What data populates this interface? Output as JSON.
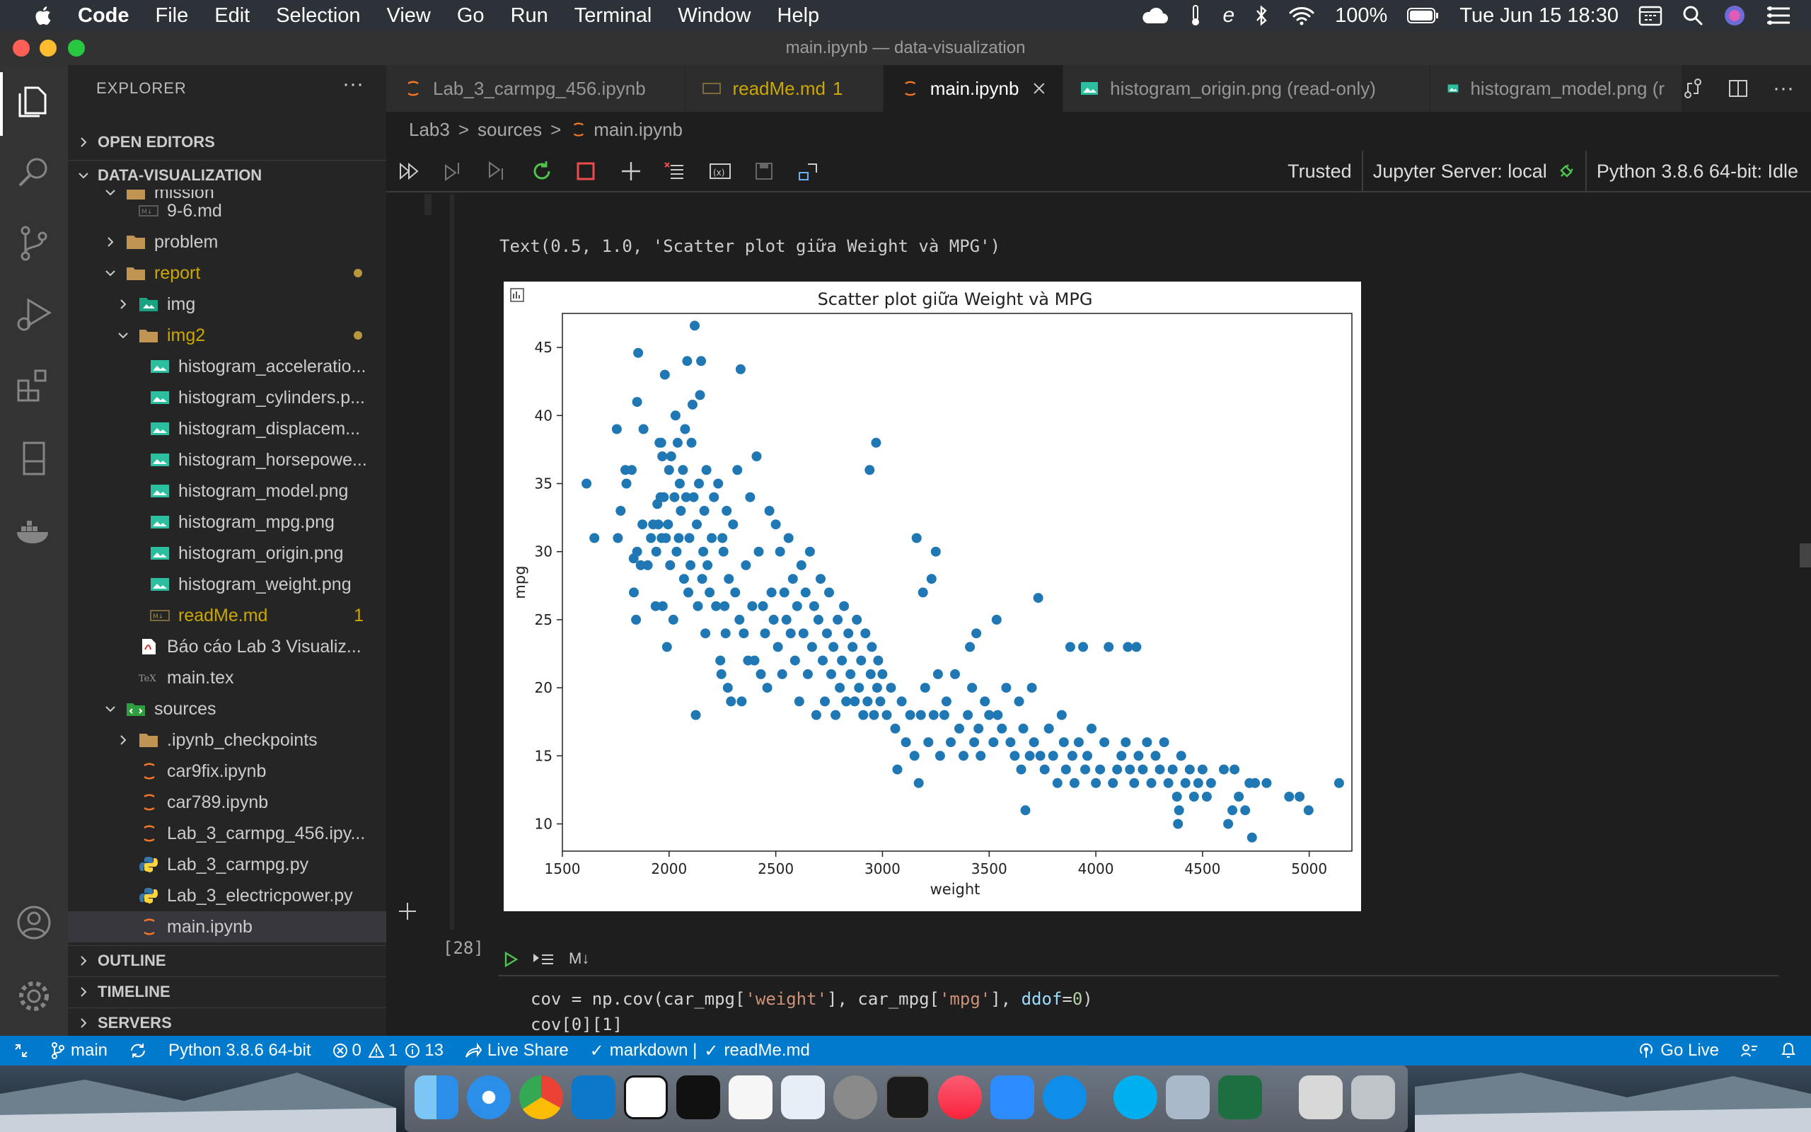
{
  "menubar": {
    "app_name": "Code",
    "items": [
      "File",
      "Edit",
      "Selection",
      "View",
      "Go",
      "Run",
      "Terminal",
      "Window",
      "Help"
    ],
    "battery": "100%",
    "datetime": "Tue Jun 15  18:30"
  },
  "window": {
    "title": "main.ipynb — data-visualization"
  },
  "sidebar": {
    "header": "EXPLORER",
    "open_editors": "OPEN EDITORS",
    "project": "DATA-VISUALIZATION",
    "tree": [
      {
        "label": "mission",
        "kind": "folder-open"
      },
      {
        "label": "9-6.md",
        "kind": "md"
      },
      {
        "label": "problem",
        "kind": "folder"
      },
      {
        "label": "report",
        "kind": "folder-open"
      },
      {
        "label": "img",
        "kind": "folder-img"
      },
      {
        "label": "img2",
        "kind": "folder-open"
      },
      {
        "label": "histogram_acceleratio...",
        "kind": "png"
      },
      {
        "label": "histogram_cylinders.p...",
        "kind": "png"
      },
      {
        "label": "histogram_displacem...",
        "kind": "png"
      },
      {
        "label": "histogram_horsepowe...",
        "kind": "png"
      },
      {
        "label": "histogram_model.png",
        "kind": "png"
      },
      {
        "label": "histogram_mpg.png",
        "kind": "png"
      },
      {
        "label": "histogram_origin.png",
        "kind": "png"
      },
      {
        "label": "histogram_weight.png",
        "kind": "png"
      },
      {
        "label": "readMe.md",
        "kind": "md"
      },
      {
        "label": "Báo cáo Lab 3 Visualiz...",
        "kind": "pdf"
      },
      {
        "label": "main.tex",
        "kind": "tex"
      },
      {
        "label": "sources",
        "kind": "folder-open"
      },
      {
        "label": ".ipynb_checkpoints",
        "kind": "folder"
      },
      {
        "label": "car9fix.ipynb",
        "kind": "ipynb"
      },
      {
        "label": "car789.ipynb",
        "kind": "ipynb"
      },
      {
        "label": "Lab_3_carmpg_456.ipy...",
        "kind": "ipynb"
      },
      {
        "label": "Lab_3_carmpg.py",
        "kind": "py"
      },
      {
        "label": "Lab_3_electricpower.py",
        "kind": "py"
      },
      {
        "label": "main.ipynb",
        "kind": "ipynb"
      }
    ],
    "readme_badge": "1",
    "outline": "OUTLINE",
    "timeline": "TIMELINE",
    "servers": "SERVERS"
  },
  "tabs": [
    {
      "label": "Lab_3_carmpg_456.ipynb"
    },
    {
      "label": "readMe.md",
      "badge": "1"
    },
    {
      "label": "main.ipynb"
    },
    {
      "label": "histogram_origin.png (read-only)"
    },
    {
      "label": "histogram_model.png (r"
    }
  ],
  "breadcrumb": [
    "Lab3",
    "sources",
    "main.ipynb"
  ],
  "nb_toolbar": {
    "trusted": "Trusted",
    "server": "Jupyter Server: local",
    "kernel": "Python 3.8.6 64-bit: Idle"
  },
  "output_text": "Text(0.5, 1.0, 'Scatter plot giữa Weight và MPG')",
  "exec_count": "[28]",
  "cell_md_label": "M↓",
  "code_lines": {
    "l1_a": "cov = np.cov(car_mpg[",
    "l1_s1": "'weight'",
    "l1_b": "], car_mpg[",
    "l1_s2": "'mpg'",
    "l1_c": "], ",
    "l1_k": "ddof",
    "l1_d": "=",
    "l1_n": "0",
    "l1_e": ")",
    "l2": "cov[0][1]"
  },
  "statusbar": {
    "branch": "main",
    "interpreter": "Python 3.8.6 64-bit",
    "errors": "0",
    "warnings": "1",
    "infos": "13",
    "live_share": "Live Share",
    "mode": "markdown |",
    "file": "readMe.md",
    "go_live": "Go Live"
  },
  "colors": {
    "accent": "#007acc",
    "point": "#1f77b4"
  },
  "chart_data": {
    "type": "scatter",
    "title": "Scatter plot giữa Weight và MPG",
    "xlabel": "weight",
    "ylabel": "mpg",
    "xlim": [
      1500,
      5200
    ],
    "ylim": [
      8,
      47.5
    ],
    "xticks": [
      1500,
      2000,
      2500,
      3000,
      3500,
      4000,
      4500,
      5000
    ],
    "yticks": [
      10,
      15,
      20,
      25,
      30,
      35,
      40,
      45
    ],
    "points": [
      [
        1613,
        35
      ],
      [
        1650,
        31
      ],
      [
        1755,
        39
      ],
      [
        1760,
        31
      ],
      [
        1773,
        33
      ],
      [
        1795,
        36
      ],
      [
        1800,
        35
      ],
      [
        1825,
        36
      ],
      [
        1834,
        29.5
      ],
      [
        1835,
        27
      ],
      [
        1845,
        25
      ],
      [
        1850,
        41
      ],
      [
        1850,
        30
      ],
      [
        1855,
        44.6
      ],
      [
        1867,
        29
      ],
      [
        1875,
        32
      ],
      [
        1880,
        39
      ],
      [
        1900,
        29
      ],
      [
        1915,
        31
      ],
      [
        1925,
        32
      ],
      [
        1937,
        26
      ],
      [
        1940,
        30
      ],
      [
        1945,
        33.5
      ],
      [
        1950,
        32
      ],
      [
        1955,
        38
      ],
      [
        1960,
        34
      ],
      [
        1963,
        38
      ],
      [
        1965,
        31
      ],
      [
        1968,
        37
      ],
      [
        1970,
        26
      ],
      [
        1975,
        34
      ],
      [
        1980,
        43
      ],
      [
        1985,
        31
      ],
      [
        1990,
        23
      ],
      [
        1995,
        32
      ],
      [
        2000,
        36
      ],
      [
        2005,
        29
      ],
      [
        2010,
        37
      ],
      [
        2020,
        25
      ],
      [
        2025,
        34
      ],
      [
        2030,
        40
      ],
      [
        2035,
        30
      ],
      [
        2040,
        38
      ],
      [
        2045,
        31
      ],
      [
        2050,
        35
      ],
      [
        2055,
        33
      ],
      [
        2065,
        36
      ],
      [
        2070,
        28
      ],
      [
        2075,
        39
      ],
      [
        2080,
        34
      ],
      [
        2085,
        44
      ],
      [
        2090,
        27
      ],
      [
        2095,
        31
      ],
      [
        2100,
        29
      ],
      [
        2105,
        38
      ],
      [
        2110,
        40.8
      ],
      [
        2115,
        34
      ],
      [
        2120,
        46.6
      ],
      [
        2125,
        18
      ],
      [
        2130,
        32
      ],
      [
        2135,
        26
      ],
      [
        2140,
        35
      ],
      [
        2145,
        41.5
      ],
      [
        2150,
        44
      ],
      [
        2155,
        28
      ],
      [
        2160,
        30
      ],
      [
        2165,
        33
      ],
      [
        2170,
        24
      ],
      [
        2175,
        36
      ],
      [
        2180,
        29
      ],
      [
        2190,
        27
      ],
      [
        2200,
        31
      ],
      [
        2210,
        34
      ],
      [
        2220,
        26
      ],
      [
        2230,
        35
      ],
      [
        2240,
        22
      ],
      [
        2245,
        21
      ],
      [
        2250,
        31
      ],
      [
        2255,
        30
      ],
      [
        2260,
        26
      ],
      [
        2265,
        24
      ],
      [
        2270,
        33
      ],
      [
        2275,
        20
      ],
      [
        2280,
        28
      ],
      [
        2290,
        19
      ],
      [
        2300,
        32
      ],
      [
        2310,
        27
      ],
      [
        2320,
        36
      ],
      [
        2330,
        25
      ],
      [
        2335,
        43.4
      ],
      [
        2340,
        19
      ],
      [
        2350,
        24
      ],
      [
        2360,
        29
      ],
      [
        2370,
        22
      ],
      [
        2380,
        34
      ],
      [
        2390,
        26
      ],
      [
        2400,
        22
      ],
      [
        2410,
        37
      ],
      [
        2420,
        30
      ],
      [
        2430,
        21
      ],
      [
        2440,
        26
      ],
      [
        2450,
        24
      ],
      [
        2460,
        20
      ],
      [
        2470,
        33
      ],
      [
        2480,
        27
      ],
      [
        2490,
        25
      ],
      [
        2500,
        32
      ],
      [
        2510,
        23
      ],
      [
        2520,
        30
      ],
      [
        2530,
        21
      ],
      [
        2540,
        27
      ],
      [
        2550,
        25
      ],
      [
        2560,
        31
      ],
      [
        2570,
        24
      ],
      [
        2580,
        28
      ],
      [
        2590,
        22
      ],
      [
        2600,
        26
      ],
      [
        2610,
        19
      ],
      [
        2620,
        29
      ],
      [
        2630,
        24
      ],
      [
        2640,
        27
      ],
      [
        2650,
        21
      ],
      [
        2660,
        30
      ],
      [
        2670,
        23
      ],
      [
        2680,
        26
      ],
      [
        2690,
        18
      ],
      [
        2700,
        25
      ],
      [
        2710,
        28
      ],
      [
        2720,
        22
      ],
      [
        2730,
        19
      ],
      [
        2740,
        24
      ],
      [
        2750,
        27
      ],
      [
        2760,
        21
      ],
      [
        2770,
        23
      ],
      [
        2780,
        18
      ],
      [
        2790,
        25
      ],
      [
        2800,
        20
      ],
      [
        2810,
        22
      ],
      [
        2820,
        26
      ],
      [
        2830,
        19
      ],
      [
        2840,
        24
      ],
      [
        2850,
        21
      ],
      [
        2860,
        23
      ],
      [
        2870,
        19
      ],
      [
        2880,
        25
      ],
      [
        2890,
        20
      ],
      [
        2900,
        22
      ],
      [
        2910,
        18
      ],
      [
        2920,
        24
      ],
      [
        2930,
        19
      ],
      [
        2940,
        36
      ],
      [
        2945,
        21
      ],
      [
        2950,
        23
      ],
      [
        2960,
        18
      ],
      [
        2970,
        38
      ],
      [
        2975,
        20
      ],
      [
        2980,
        22
      ],
      [
        2990,
        19
      ],
      [
        3000,
        21
      ],
      [
        3020,
        18
      ],
      [
        3040,
        20
      ],
      [
        3060,
        17
      ],
      [
        3070,
        14
      ],
      [
        3090,
        19
      ],
      [
        3110,
        16
      ],
      [
        3130,
        18
      ],
      [
        3150,
        15
      ],
      [
        3160,
        31
      ],
      [
        3170,
        13
      ],
      [
        3180,
        18
      ],
      [
        3190,
        27
      ],
      [
        3200,
        20
      ],
      [
        3215,
        16
      ],
      [
        3230,
        28
      ],
      [
        3240,
        18
      ],
      [
        3250,
        30
      ],
      [
        3260,
        21
      ],
      [
        3270,
        15
      ],
      [
        3290,
        18
      ],
      [
        3300,
        19
      ],
      [
        3320,
        16
      ],
      [
        3340,
        21
      ],
      [
        3360,
        17
      ],
      [
        3380,
        15
      ],
      [
        3400,
        18
      ],
      [
        3410,
        23
      ],
      [
        3420,
        20
      ],
      [
        3430,
        16
      ],
      [
        3440,
        24
      ],
      [
        3450,
        17
      ],
      [
        3460,
        15
      ],
      [
        3480,
        19
      ],
      [
        3500,
        18
      ],
      [
        3520,
        16
      ],
      [
        3535,
        25
      ],
      [
        3540,
        18
      ],
      [
        3560,
        17
      ],
      [
        3580,
        20
      ],
      [
        3600,
        16
      ],
      [
        3620,
        15
      ],
      [
        3640,
        19
      ],
      [
        3650,
        14
      ],
      [
        3660,
        17
      ],
      [
        3670,
        11
      ],
      [
        3690,
        15
      ],
      [
        3700,
        20
      ],
      [
        3710,
        16
      ],
      [
        3730,
        26.6
      ],
      [
        3740,
        15
      ],
      [
        3760,
        14
      ],
      [
        3780,
        17
      ],
      [
        3800,
        15
      ],
      [
        3820,
        13
      ],
      [
        3840,
        18
      ],
      [
        3850,
        16
      ],
      [
        3860,
        14
      ],
      [
        3880,
        23
      ],
      [
        3890,
        15
      ],
      [
        3900,
        13
      ],
      [
        3920,
        16
      ],
      [
        3940,
        23
      ],
      [
        3950,
        14
      ],
      [
        3960,
        15
      ],
      [
        3980,
        17
      ],
      [
        4000,
        13
      ],
      [
        4020,
        14
      ],
      [
        4040,
        16
      ],
      [
        4060,
        23
      ],
      [
        4080,
        13
      ],
      [
        4100,
        14
      ],
      [
        4120,
        15
      ],
      [
        4140,
        16
      ],
      [
        4150,
        23
      ],
      [
        4160,
        14
      ],
      [
        4180,
        13
      ],
      [
        4190,
        23
      ],
      [
        4200,
        15
      ],
      [
        4220,
        14
      ],
      [
        4240,
        16
      ],
      [
        4260,
        13
      ],
      [
        4280,
        15
      ],
      [
        4300,
        14
      ],
      [
        4320,
        16
      ],
      [
        4340,
        13
      ],
      [
        4360,
        14
      ],
      [
        4380,
        12
      ],
      [
        4385,
        10
      ],
      [
        4390,
        11
      ],
      [
        4400,
        15
      ],
      [
        4420,
        13
      ],
      [
        4440,
        14
      ],
      [
        4460,
        12
      ],
      [
        4480,
        13
      ],
      [
        4500,
        14
      ],
      [
        4520,
        12
      ],
      [
        4540,
        13
      ],
      [
        4600,
        14
      ],
      [
        4620,
        10
      ],
      [
        4640,
        11
      ],
      [
        4650,
        14
      ],
      [
        4670,
        12
      ],
      [
        4700,
        11
      ],
      [
        4720,
        13
      ],
      [
        4732,
        9
      ],
      [
        4746,
        13
      ],
      [
        4800,
        13
      ],
      [
        4906,
        12
      ],
      [
        4955,
        12
      ],
      [
        4997,
        11
      ],
      [
        5140,
        13
      ]
    ]
  }
}
